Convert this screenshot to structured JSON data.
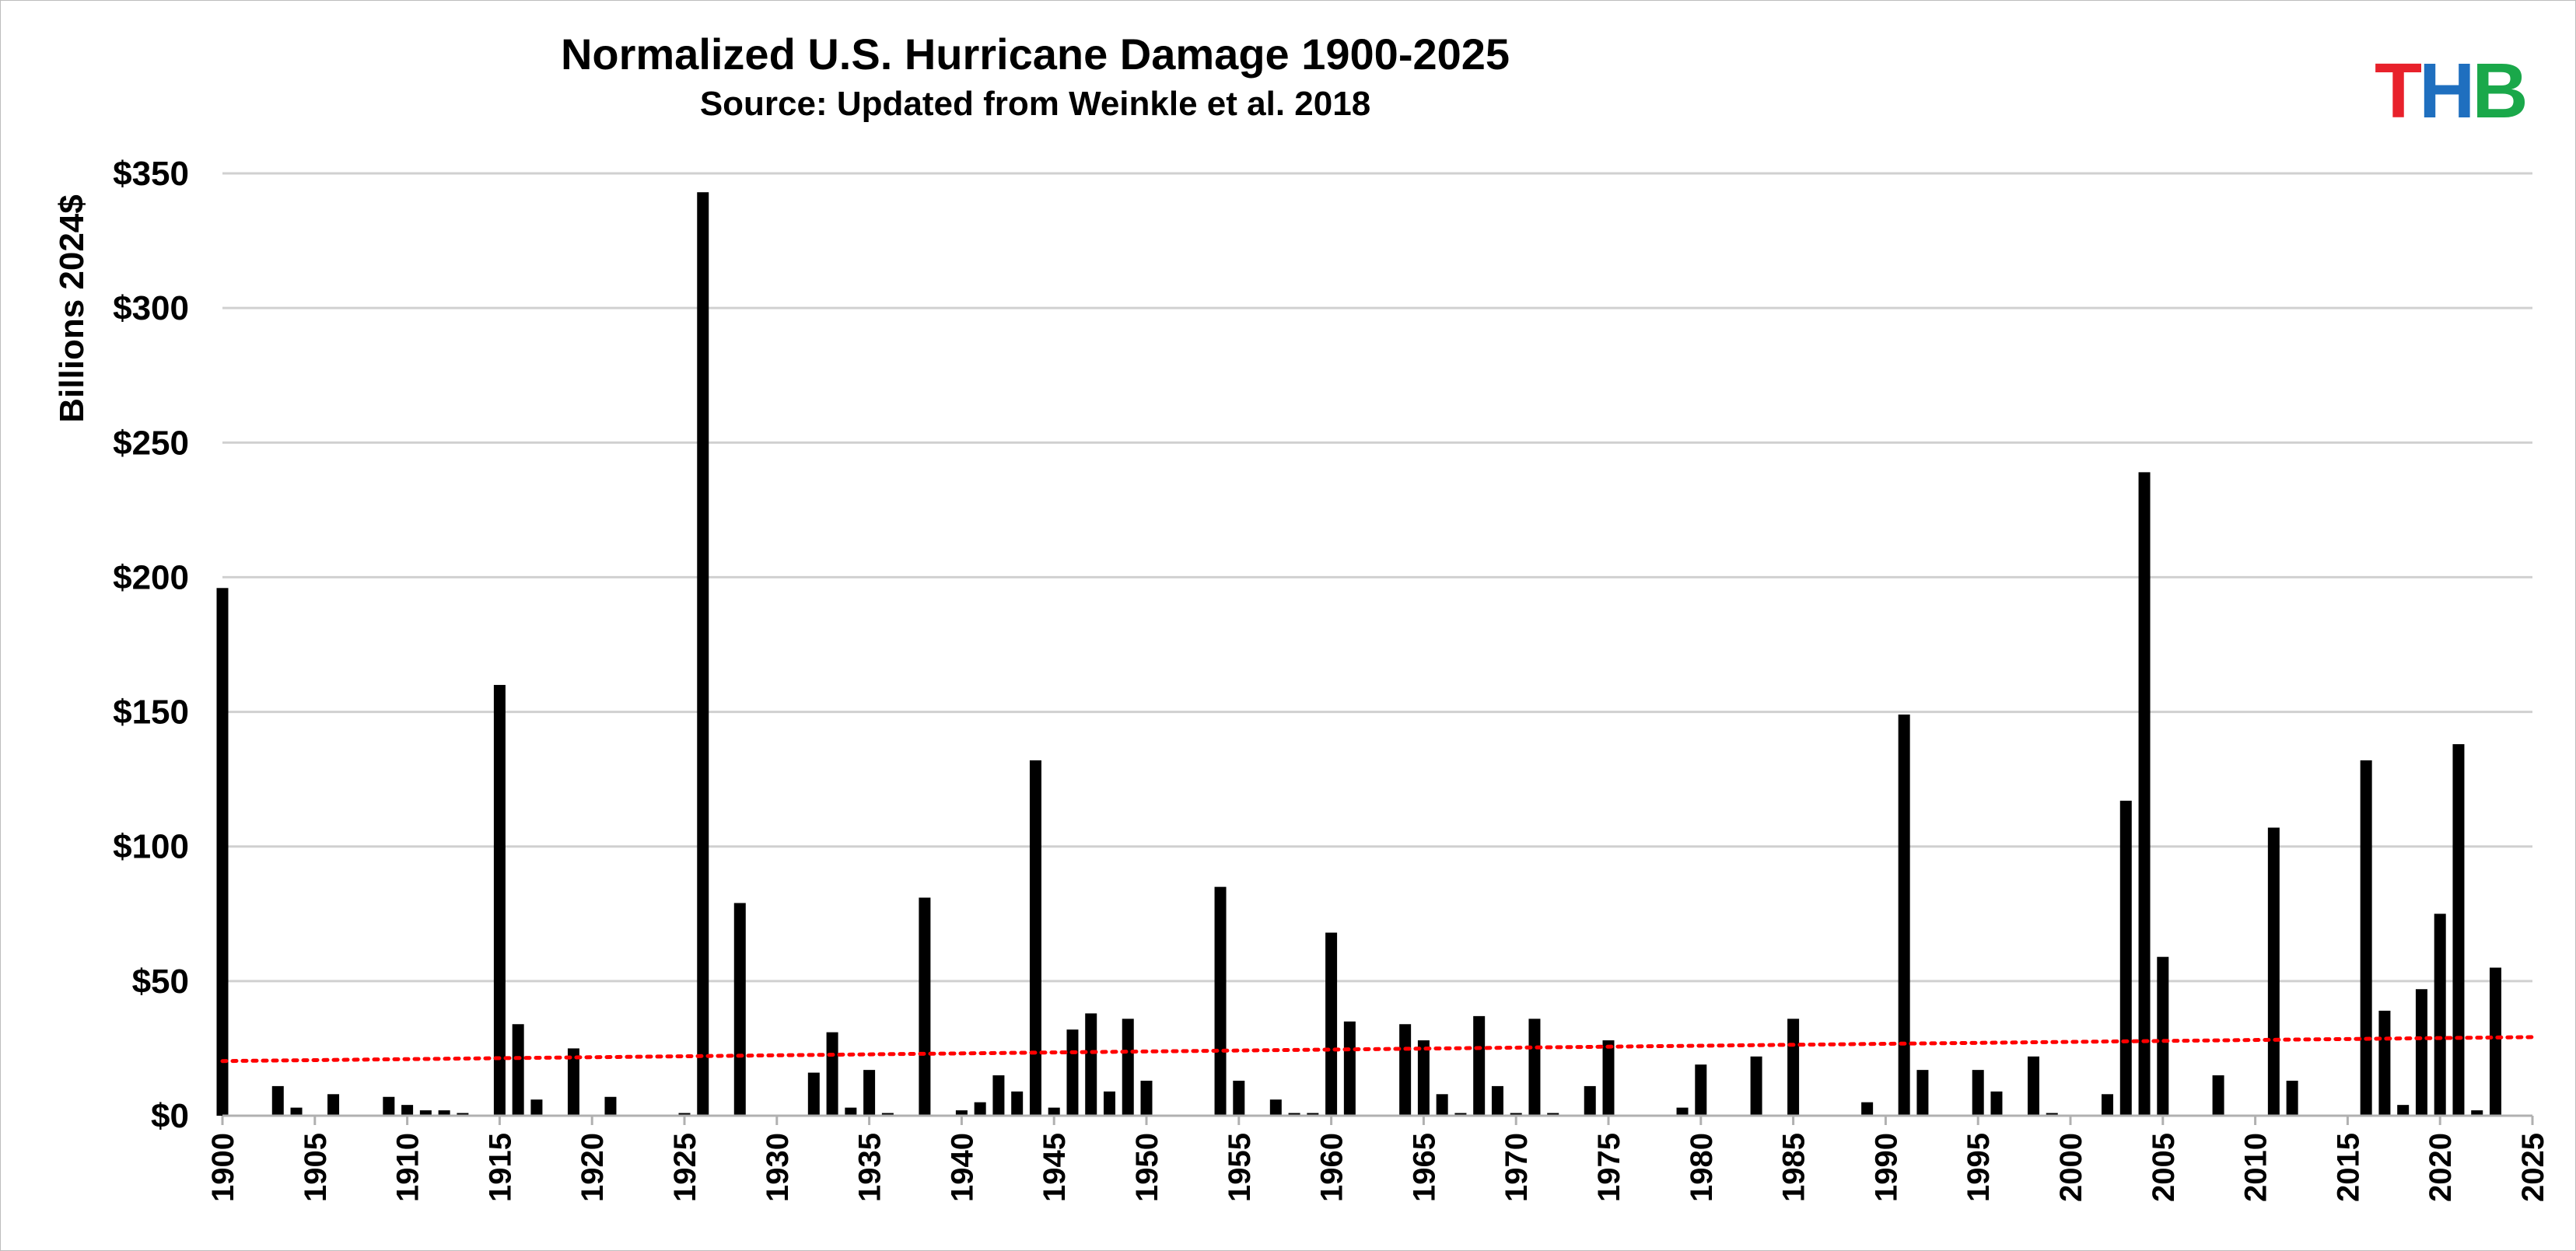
{
  "chart_data": {
    "type": "bar",
    "title": "Normalized U.S. Hurricane Damage 1900-2025",
    "subtitle": "Source: Updated from Weinkle et al. 2018",
    "ylabel": "Billions 2024$",
    "xlabel": "",
    "ylim": [
      0,
      350
    ],
    "yticks": [
      0,
      50,
      100,
      150,
      200,
      250,
      300,
      350
    ],
    "ytick_labels": [
      "$0",
      "$50",
      "$100",
      "$150",
      "$200",
      "$250",
      "$300",
      "$350"
    ],
    "xlim": [
      1900,
      2025
    ],
    "xticks": [
      1900,
      1905,
      1910,
      1915,
      1920,
      1925,
      1930,
      1935,
      1940,
      1945,
      1950,
      1955,
      1960,
      1965,
      1970,
      1975,
      1980,
      1985,
      1990,
      1995,
      2000,
      2005,
      2010,
      2015,
      2020,
      2025
    ],
    "xtick_labels": [
      "1900",
      "1905",
      "1910",
      "1915",
      "1920",
      "1925",
      "1930",
      "1935",
      "1940",
      "1945",
      "1950",
      "1955",
      "1960",
      "1965",
      "1970",
      "1975",
      "1980",
      "1985",
      "1990",
      "1995",
      "2000",
      "2005",
      "2010",
      "2015",
      "2020",
      "2025"
    ],
    "grid": true,
    "x": [
      1900,
      1903,
      1904,
      1906,
      1909,
      1910,
      1911,
      1912,
      1913,
      1915,
      1916,
      1917,
      1919,
      1921,
      1925,
      1926,
      1928,
      1932,
      1933,
      1934,
      1935,
      1936,
      1938,
      1940,
      1941,
      1942,
      1943,
      1944,
      1945,
      1946,
      1947,
      1948,
      1949,
      1950,
      1954,
      1955,
      1957,
      1958,
      1959,
      1960,
      1961,
      1964,
      1965,
      1966,
      1967,
      1968,
      1969,
      1970,
      1971,
      1972,
      1974,
      1975,
      1979,
      1980,
      1983,
      1985,
      1989,
      1991,
      1992,
      1995,
      1996,
      1998,
      1999,
      2002,
      2003,
      2004,
      2005,
      2008,
      2011,
      2012,
      2016,
      2017,
      2018,
      2019,
      2020,
      2021,
      2022,
      2023,
      2024
    ],
    "values": [
      196,
      11,
      3,
      8,
      7,
      4,
      2,
      2,
      1,
      160,
      34,
      6,
      25,
      7,
      1,
      343,
      79,
      16,
      31,
      3,
      17,
      1,
      81,
      2,
      5,
      15,
      9,
      132,
      3,
      32,
      38,
      9,
      36,
      13,
      85,
      13,
      6,
      1,
      1,
      68,
      35,
      34,
      28,
      8,
      1,
      37,
      11,
      1,
      36,
      1,
      11,
      28,
      3,
      19,
      22,
      36,
      5,
      149,
      17,
      17,
      9,
      22,
      1,
      8,
      117,
      239,
      59,
      15,
      107,
      13,
      132,
      39,
      4,
      47,
      75,
      138,
      2,
      55,
      0
    ],
    "bar_color": "#000000",
    "trendline": {
      "label": "",
      "start_value": 20.3,
      "end_value": 29.2,
      "color": "#ff0000",
      "style": "dotted"
    },
    "logo": {
      "letters": [
        "T",
        "H",
        "B"
      ],
      "colors": [
        "#e8212b",
        "#1f6fbf",
        "#1aa84a"
      ]
    }
  }
}
